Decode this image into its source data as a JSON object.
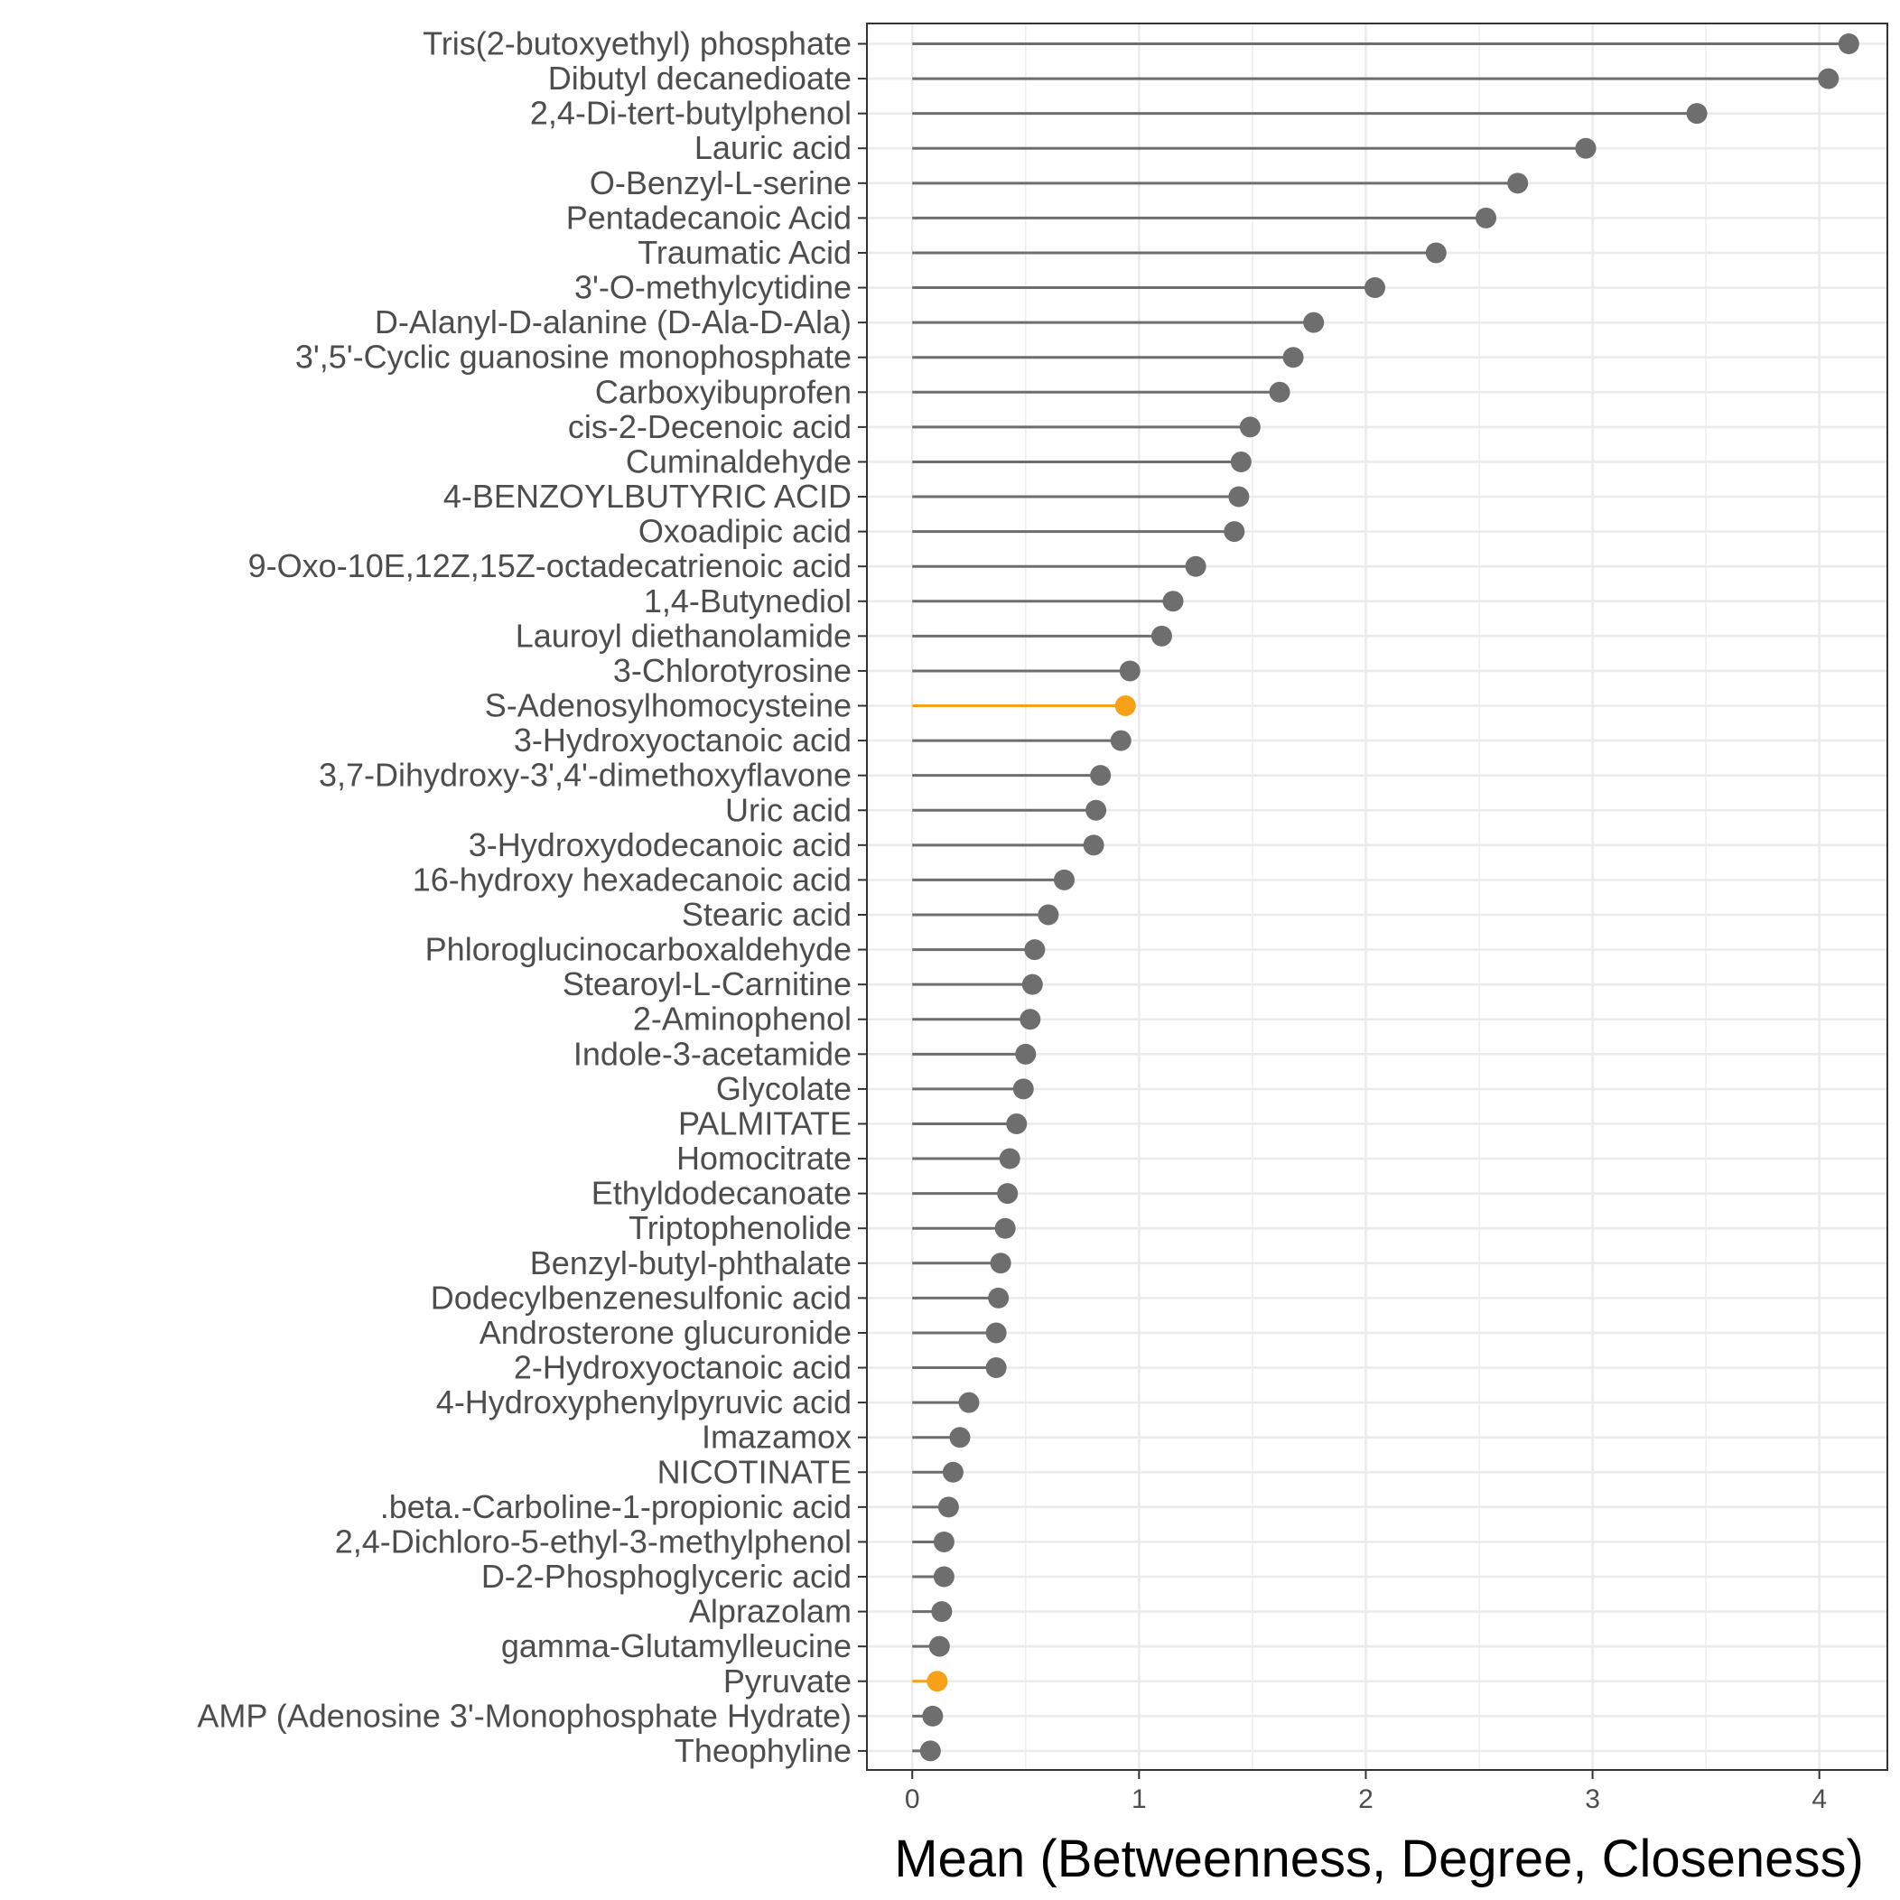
{
  "chart_data": {
    "type": "lollipop",
    "orientation": "horizontal",
    "xlabel": "Mean (Betweenness, Degree, Closeness)",
    "xlim": [
      -0.2,
      4.3
    ],
    "xticks": [
      0,
      1,
      2,
      3,
      4
    ],
    "grid": true,
    "colors": {
      "default": "#6e6e6e",
      "highlight": "#f7a11a",
      "grid": "#ebebeb",
      "frame": "#333333"
    },
    "points": [
      {
        "label": "Tris(2-butoxyethyl) phosphate",
        "value": 4.13,
        "highlight": false
      },
      {
        "label": "Dibutyl decanedioate",
        "value": 4.04,
        "highlight": false
      },
      {
        "label": "2,4-Di-tert-butylphenol",
        "value": 3.46,
        "highlight": false
      },
      {
        "label": "Lauric acid",
        "value": 2.97,
        "highlight": false
      },
      {
        "label": "O-Benzyl-L-serine",
        "value": 2.67,
        "highlight": false
      },
      {
        "label": "Pentadecanoic Acid",
        "value": 2.53,
        "highlight": false
      },
      {
        "label": "Traumatic Acid",
        "value": 2.31,
        "highlight": false
      },
      {
        "label": "3'-O-methylcytidine",
        "value": 2.04,
        "highlight": false
      },
      {
        "label": "D-Alanyl-D-alanine (D-Ala-D-Ala)",
        "value": 1.77,
        "highlight": false
      },
      {
        "label": "3',5'-Cyclic guanosine monophosphate",
        "value": 1.68,
        "highlight": false
      },
      {
        "label": "Carboxyibuprofen",
        "value": 1.62,
        "highlight": false
      },
      {
        "label": "cis-2-Decenoic acid",
        "value": 1.49,
        "highlight": false
      },
      {
        "label": "Cuminaldehyde",
        "value": 1.45,
        "highlight": false
      },
      {
        "label": "4-BENZOYLBUTYRIC ACID",
        "value": 1.44,
        "highlight": false
      },
      {
        "label": "Oxoadipic acid",
        "value": 1.42,
        "highlight": false
      },
      {
        "label": "9-Oxo-10E,12Z,15Z-octadecatrienoic acid",
        "value": 1.25,
        "highlight": false
      },
      {
        "label": "1,4-Butynediol",
        "value": 1.15,
        "highlight": false
      },
      {
        "label": "Lauroyl diethanolamide",
        "value": 1.1,
        "highlight": false
      },
      {
        "label": "3-Chlorotyrosine",
        "value": 0.96,
        "highlight": false
      },
      {
        "label": "S-Adenosylhomocysteine",
        "value": 0.94,
        "highlight": true
      },
      {
        "label": "3-Hydroxyoctanoic acid",
        "value": 0.92,
        "highlight": false
      },
      {
        "label": "3,7-Dihydroxy-3',4'-dimethoxyflavone",
        "value": 0.83,
        "highlight": false
      },
      {
        "label": "Uric acid",
        "value": 0.81,
        "highlight": false
      },
      {
        "label": "3-Hydroxydodecanoic acid",
        "value": 0.8,
        "highlight": false
      },
      {
        "label": "16-hydroxy hexadecanoic acid",
        "value": 0.67,
        "highlight": false
      },
      {
        "label": "Stearic acid",
        "value": 0.6,
        "highlight": false
      },
      {
        "label": "Phloroglucinocarboxaldehyde",
        "value": 0.54,
        "highlight": false
      },
      {
        "label": "Stearoyl-L-Carnitine",
        "value": 0.53,
        "highlight": false
      },
      {
        "label": "2-Aminophenol",
        "value": 0.52,
        "highlight": false
      },
      {
        "label": "Indole-3-acetamide",
        "value": 0.5,
        "highlight": false
      },
      {
        "label": "Glycolate",
        "value": 0.49,
        "highlight": false
      },
      {
        "label": "PALMITATE",
        "value": 0.46,
        "highlight": false
      },
      {
        "label": "Homocitrate",
        "value": 0.43,
        "highlight": false
      },
      {
        "label": "Ethyldodecanoate",
        "value": 0.42,
        "highlight": false
      },
      {
        "label": "Triptophenolide",
        "value": 0.41,
        "highlight": false
      },
      {
        "label": "Benzyl-butyl-phthalate",
        "value": 0.39,
        "highlight": false
      },
      {
        "label": "Dodecylbenzenesulfonic acid",
        "value": 0.38,
        "highlight": false
      },
      {
        "label": "Androsterone glucuronide",
        "value": 0.37,
        "highlight": false
      },
      {
        "label": "2-Hydroxyoctanoic acid",
        "value": 0.37,
        "highlight": false
      },
      {
        "label": "4-Hydroxyphenylpyruvic acid",
        "value": 0.25,
        "highlight": false
      },
      {
        "label": "Imazamox",
        "value": 0.21,
        "highlight": false
      },
      {
        "label": "NICOTINATE",
        "value": 0.18,
        "highlight": false
      },
      {
        "label": ".beta.-Carboline-1-propionic acid",
        "value": 0.16,
        "highlight": false
      },
      {
        "label": "2,4-Dichloro-5-ethyl-3-methylphenol",
        "value": 0.14,
        "highlight": false
      },
      {
        "label": "D-2-Phosphoglyceric acid",
        "value": 0.14,
        "highlight": false
      },
      {
        "label": "Alprazolam",
        "value": 0.13,
        "highlight": false
      },
      {
        "label": "gamma-Glutamylleucine",
        "value": 0.12,
        "highlight": false
      },
      {
        "label": "Pyruvate",
        "value": 0.11,
        "highlight": true
      },
      {
        "label": "AMP (Adenosine 3'-Monophosphate Hydrate)",
        "value": 0.09,
        "highlight": false
      },
      {
        "label": "Theophyline",
        "value": 0.08,
        "highlight": false
      }
    ]
  }
}
